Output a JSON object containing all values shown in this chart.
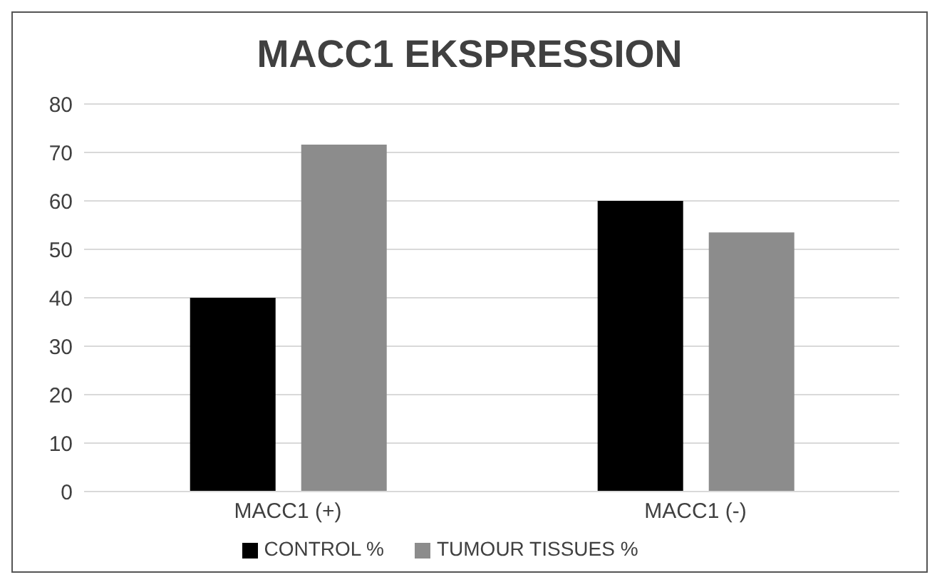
{
  "chart_data": {
    "type": "bar",
    "title": "MACC1 EKSPRESSION",
    "categories": [
      "MACC1 (+)",
      "MACC1 (-)"
    ],
    "series": [
      {
        "name": "CONTROL %",
        "color": "#000000",
        "values": [
          40,
          60
        ]
      },
      {
        "name": "TUMOUR TISSUES %",
        "color": "#8c8c8c",
        "values": [
          71.6,
          53.5
        ]
      }
    ],
    "ylim": [
      0,
      80
    ],
    "yticks": [
      0,
      10,
      20,
      30,
      40,
      50,
      60,
      70,
      80
    ],
    "grid": "y",
    "legend": "bottom"
  }
}
